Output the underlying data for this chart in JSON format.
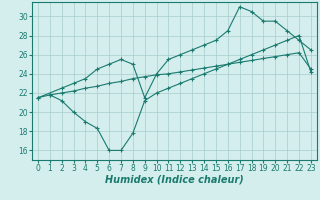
{
  "line_straight_x": [
    0,
    1,
    2,
    3,
    4,
    5,
    6,
    7,
    8,
    9,
    10,
    11,
    12,
    13,
    14,
    15,
    16,
    17,
    18,
    19,
    20,
    21,
    22,
    23
  ],
  "line_straight_y": [
    21.5,
    21.8,
    22.0,
    22.2,
    22.5,
    22.7,
    23.0,
    23.2,
    23.5,
    23.7,
    23.9,
    24.0,
    24.2,
    24.4,
    24.6,
    24.8,
    25.0,
    25.2,
    25.4,
    25.6,
    25.8,
    26.0,
    26.2,
    24.5
  ],
  "line_top_x": [
    0,
    2,
    3,
    4,
    5,
    6,
    7,
    8,
    9,
    10,
    11,
    12,
    13,
    14,
    15,
    16,
    17,
    18,
    19,
    20,
    21,
    22,
    23
  ],
  "line_top_y": [
    21.5,
    22.5,
    23.0,
    23.5,
    24.5,
    25.0,
    25.5,
    25.0,
    21.5,
    24.0,
    25.5,
    26.0,
    26.5,
    27.0,
    27.5,
    28.5,
    31.0,
    30.5,
    29.5,
    29.5,
    28.5,
    27.5,
    26.5
  ],
  "line_dip_x": [
    1,
    2,
    3,
    4,
    5,
    6,
    7,
    8,
    9,
    10,
    11,
    12,
    13,
    14,
    15,
    16,
    17,
    18,
    19,
    20,
    21,
    22,
    23
  ],
  "line_dip_y": [
    21.8,
    21.2,
    20.0,
    19.0,
    18.3,
    16.0,
    16.0,
    17.8,
    21.2,
    22.0,
    22.5,
    23.0,
    23.5,
    24.0,
    24.5,
    25.0,
    25.5,
    26.0,
    26.5,
    27.0,
    27.5,
    28.0,
    24.2
  ],
  "line_color": "#1a7a6e",
  "bg_color": "#d4eeee",
  "grid_color": "#a8cccc",
  "xlabel": "Humidex (Indice chaleur)",
  "xlim": [
    -0.5,
    23.5
  ],
  "ylim": [
    15.0,
    31.5
  ],
  "yticks": [
    16,
    18,
    20,
    22,
    24,
    26,
    28,
    30
  ],
  "xticks": [
    0,
    1,
    2,
    3,
    4,
    5,
    6,
    7,
    8,
    9,
    10,
    11,
    12,
    13,
    14,
    15,
    16,
    17,
    18,
    19,
    20,
    21,
    22,
    23
  ],
  "tick_fontsize": 5.5,
  "label_fontsize": 7
}
